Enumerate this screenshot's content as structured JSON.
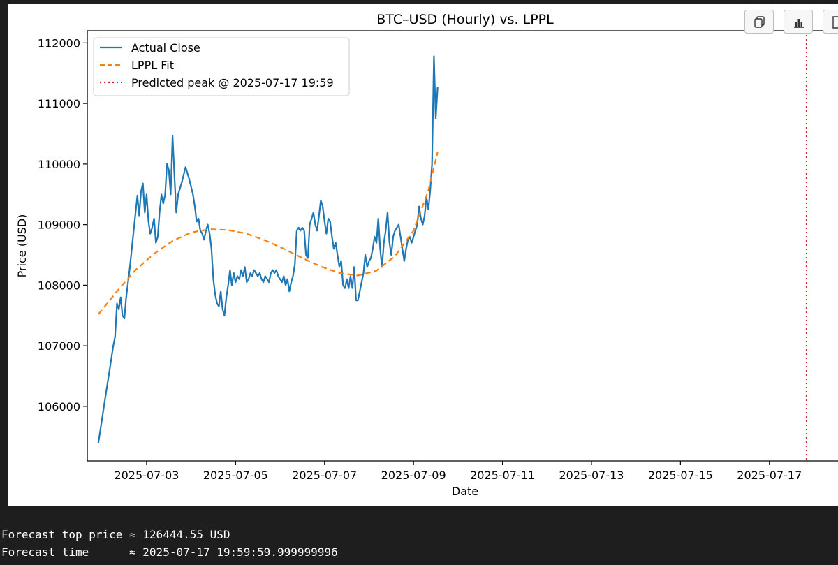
{
  "toolbar": {
    "buttons": [
      {
        "name": "copy-icon"
      },
      {
        "name": "bar-chart-icon"
      },
      {
        "name": "document-icon"
      }
    ]
  },
  "chart_data": {
    "type": "line",
    "title": "BTC–USD (Hourly) vs. LPPL",
    "xlabel": "Date",
    "ylabel": "Price (USD)",
    "xlim": [
      "2025-07-01 16:00",
      "2025-07-18 13:00"
    ],
    "ylim": [
      105100,
      112200
    ],
    "xticks": [
      "2025-07-03",
      "2025-07-05",
      "2025-07-07",
      "2025-07-09",
      "2025-07-11",
      "2025-07-13",
      "2025-07-15",
      "2025-07-17"
    ],
    "yticks": [
      106000,
      107000,
      108000,
      109000,
      110000,
      111000,
      112000
    ],
    "grid": false,
    "legend_position": "upper-left",
    "series": [
      {
        "name": "Actual Close",
        "style": "solid",
        "color": "#1f77b4",
        "points": [
          [
            "2025-07-01 22:00",
            105400
          ],
          [
            "2025-07-02 00:00",
            105800
          ],
          [
            "2025-07-02 02:00",
            106200
          ],
          [
            "2025-07-02 04:00",
            106600
          ],
          [
            "2025-07-02 06:00",
            107000
          ],
          [
            "2025-07-02 07:00",
            107150
          ],
          [
            "2025-07-02 08:00",
            107700
          ],
          [
            "2025-07-02 09:00",
            107600
          ],
          [
            "2025-07-02 10:00",
            107800
          ],
          [
            "2025-07-02 11:00",
            107500
          ],
          [
            "2025-07-02 12:00",
            107450
          ],
          [
            "2025-07-02 13:00",
            107800
          ],
          [
            "2025-07-02 15:00",
            108300
          ],
          [
            "2025-07-02 17:00",
            108900
          ],
          [
            "2025-07-02 19:00",
            109480
          ],
          [
            "2025-07-02 20:00",
            109150
          ],
          [
            "2025-07-02 21:00",
            109550
          ],
          [
            "2025-07-02 22:00",
            109680
          ],
          [
            "2025-07-02 23:00",
            109200
          ],
          [
            "2025-07-03 00:00",
            109500
          ],
          [
            "2025-07-03 01:00",
            109050
          ],
          [
            "2025-07-03 02:00",
            108850
          ],
          [
            "2025-07-03 03:00",
            108950
          ],
          [
            "2025-07-03 04:00",
            109100
          ],
          [
            "2025-07-03 05:00",
            108700
          ],
          [
            "2025-07-03 06:00",
            108800
          ],
          [
            "2025-07-03 07:00",
            109200
          ],
          [
            "2025-07-03 08:00",
            109500
          ],
          [
            "2025-07-03 09:00",
            109350
          ],
          [
            "2025-07-03 10:00",
            109500
          ],
          [
            "2025-07-03 11:00",
            110000
          ],
          [
            "2025-07-03 12:00",
            109900
          ],
          [
            "2025-07-03 13:00",
            109500
          ],
          [
            "2025-07-03 14:00",
            110470
          ],
          [
            "2025-07-03 15:00",
            109800
          ],
          [
            "2025-07-03 16:00",
            109200
          ],
          [
            "2025-07-03 17:00",
            109500
          ],
          [
            "2025-07-03 19:00",
            109700
          ],
          [
            "2025-07-03 21:00",
            109950
          ],
          [
            "2025-07-03 23:00",
            109750
          ],
          [
            "2025-07-04 01:00",
            109500
          ],
          [
            "2025-07-04 02:00",
            109300
          ],
          [
            "2025-07-04 03:00",
            109050
          ],
          [
            "2025-07-04 04:00",
            109100
          ],
          [
            "2025-07-04 05:00",
            108900
          ],
          [
            "2025-07-04 06:00",
            108850
          ],
          [
            "2025-07-04 07:00",
            108750
          ],
          [
            "2025-07-04 08:00",
            108900
          ],
          [
            "2025-07-04 09:00",
            109000
          ],
          [
            "2025-07-04 10:00",
            108850
          ],
          [
            "2025-07-04 11:00",
            108600
          ],
          [
            "2025-07-04 12:00",
            108100
          ],
          [
            "2025-07-04 13:00",
            107850
          ],
          [
            "2025-07-04 14:00",
            107700
          ],
          [
            "2025-07-04 15:00",
            107650
          ],
          [
            "2025-07-04 16:00",
            107900
          ],
          [
            "2025-07-04 17:00",
            107600
          ],
          [
            "2025-07-04 18:00",
            107500
          ],
          [
            "2025-07-04 19:00",
            107800
          ],
          [
            "2025-07-04 20:00",
            108000
          ],
          [
            "2025-07-04 21:00",
            108250
          ],
          [
            "2025-07-04 22:00",
            108000
          ],
          [
            "2025-07-04 23:00",
            108200
          ],
          [
            "2025-07-05 00:00",
            108050
          ],
          [
            "2025-07-05 01:00",
            108150
          ],
          [
            "2025-07-05 02:00",
            108100
          ],
          [
            "2025-07-05 03:00",
            108250
          ],
          [
            "2025-07-05 04:00",
            108150
          ],
          [
            "2025-07-05 05:00",
            108300
          ],
          [
            "2025-07-05 06:00",
            108050
          ],
          [
            "2025-07-05 07:00",
            108100
          ],
          [
            "2025-07-05 08:00",
            108200
          ],
          [
            "2025-07-05 09:00",
            108150
          ],
          [
            "2025-07-05 10:00",
            108250
          ],
          [
            "2025-07-05 11:00",
            108200
          ],
          [
            "2025-07-05 12:00",
            108150
          ],
          [
            "2025-07-05 13:00",
            108200
          ],
          [
            "2025-07-05 14:00",
            108100
          ],
          [
            "2025-07-05 15:00",
            108050
          ],
          [
            "2025-07-05 16:00",
            108150
          ],
          [
            "2025-07-05 17:00",
            108100
          ],
          [
            "2025-07-05 18:00",
            108050
          ],
          [
            "2025-07-05 19:00",
            108200
          ],
          [
            "2025-07-05 20:00",
            108250
          ],
          [
            "2025-07-05 21:00",
            108200
          ],
          [
            "2025-07-05 22:00",
            108250
          ],
          [
            "2025-07-05 23:00",
            108150
          ],
          [
            "2025-07-06 00:00",
            108100
          ],
          [
            "2025-07-06 01:00",
            108050
          ],
          [
            "2025-07-06 02:00",
            108150
          ],
          [
            "2025-07-06 03:00",
            108000
          ],
          [
            "2025-07-06 04:00",
            108100
          ],
          [
            "2025-07-06 05:00",
            107900
          ],
          [
            "2025-07-06 06:00",
            108050
          ],
          [
            "2025-07-06 07:00",
            108150
          ],
          [
            "2025-07-06 08:00",
            108350
          ],
          [
            "2025-07-06 09:00",
            108900
          ],
          [
            "2025-07-06 10:00",
            108950
          ],
          [
            "2025-07-06 11:00",
            108900
          ],
          [
            "2025-07-06 12:00",
            108950
          ],
          [
            "2025-07-06 13:00",
            108900
          ],
          [
            "2025-07-06 14:00",
            108500
          ],
          [
            "2025-07-06 15:00",
            108450
          ],
          [
            "2025-07-06 16:00",
            109000
          ],
          [
            "2025-07-06 17:00",
            109100
          ],
          [
            "2025-07-06 18:00",
            109200
          ],
          [
            "2025-07-06 19:00",
            109000
          ],
          [
            "2025-07-06 20:00",
            108900
          ],
          [
            "2025-07-06 21:00",
            109150
          ],
          [
            "2025-07-06 22:00",
            109400
          ],
          [
            "2025-07-06 23:00",
            109300
          ],
          [
            "2025-07-07 00:00",
            109050
          ],
          [
            "2025-07-07 01:00",
            108850
          ],
          [
            "2025-07-07 02:00",
            109100
          ],
          [
            "2025-07-07 03:00",
            109050
          ],
          [
            "2025-07-07 04:00",
            108800
          ],
          [
            "2025-07-07 05:00",
            108600
          ],
          [
            "2025-07-07 06:00",
            108700
          ],
          [
            "2025-07-07 07:00",
            108500
          ],
          [
            "2025-07-07 08:00",
            108300
          ],
          [
            "2025-07-07 09:00",
            108400
          ],
          [
            "2025-07-07 10:00",
            108000
          ],
          [
            "2025-07-07 11:00",
            107950
          ],
          [
            "2025-07-07 12:00",
            108100
          ],
          [
            "2025-07-07 13:00",
            107950
          ],
          [
            "2025-07-07 14:00",
            108150
          ],
          [
            "2025-07-07 15:00",
            107950
          ],
          [
            "2025-07-07 16:00",
            108300
          ],
          [
            "2025-07-07 17:00",
            107750
          ],
          [
            "2025-07-07 18:00",
            107750
          ],
          [
            "2025-07-07 19:00",
            107900
          ],
          [
            "2025-07-07 20:00",
            108050
          ],
          [
            "2025-07-07 21:00",
            108200
          ],
          [
            "2025-07-07 22:00",
            108500
          ],
          [
            "2025-07-07 23:00",
            108300
          ],
          [
            "2025-07-08 00:00",
            108400
          ],
          [
            "2025-07-08 01:00",
            108450
          ],
          [
            "2025-07-08 02:00",
            108600
          ],
          [
            "2025-07-08 03:00",
            108800
          ],
          [
            "2025-07-08 04:00",
            108700
          ],
          [
            "2025-07-08 05:00",
            109100
          ],
          [
            "2025-07-08 06:00",
            108600
          ],
          [
            "2025-07-08 07:00",
            108300
          ],
          [
            "2025-07-08 08:00",
            108700
          ],
          [
            "2025-07-08 09:00",
            108900
          ],
          [
            "2025-07-08 10:00",
            109200
          ],
          [
            "2025-07-08 11:00",
            108700
          ],
          [
            "2025-07-08 12:00",
            108500
          ],
          [
            "2025-07-08 13:00",
            108800
          ],
          [
            "2025-07-08 14:00",
            108900
          ],
          [
            "2025-07-08 15:00",
            108950
          ],
          [
            "2025-07-08 16:00",
            109000
          ],
          [
            "2025-07-08 17:00",
            108800
          ],
          [
            "2025-07-08 18:00",
            108600
          ],
          [
            "2025-07-08 19:00",
            108400
          ],
          [
            "2025-07-08 20:00",
            108600
          ],
          [
            "2025-07-08 21:00",
            108750
          ],
          [
            "2025-07-08 22:00",
            108800
          ],
          [
            "2025-07-08 23:00",
            108700
          ],
          [
            "2025-07-09 00:00",
            108800
          ],
          [
            "2025-07-09 01:00",
            108900
          ],
          [
            "2025-07-09 02:00",
            109000
          ],
          [
            "2025-07-09 03:00",
            109300
          ],
          [
            "2025-07-09 04:00",
            109100
          ],
          [
            "2025-07-09 05:00",
            109000
          ],
          [
            "2025-07-09 06:00",
            109150
          ],
          [
            "2025-07-09 07:00",
            109450
          ],
          [
            "2025-07-09 08:00",
            109250
          ],
          [
            "2025-07-09 09:00",
            109550
          ],
          [
            "2025-07-09 10:00",
            110000
          ],
          [
            "2025-07-09 11:00",
            111780
          ],
          [
            "2025-07-09 12:00",
            110750
          ],
          [
            "2025-07-09 13:00",
            111270
          ]
        ]
      },
      {
        "name": "LPPL Fit",
        "style": "dashed",
        "color": "#ff7f0e",
        "points": [
          [
            "2025-07-01 22:00",
            107520
          ],
          [
            "2025-07-02 08:00",
            107900
          ],
          [
            "2025-07-02 18:00",
            108250
          ],
          [
            "2025-07-03 04:00",
            108520
          ],
          [
            "2025-07-03 14:00",
            108730
          ],
          [
            "2025-07-04 00:00",
            108870
          ],
          [
            "2025-07-04 10:00",
            108925
          ],
          [
            "2025-07-04 20:00",
            108910
          ],
          [
            "2025-07-05 06:00",
            108850
          ],
          [
            "2025-07-05 16:00",
            108740
          ],
          [
            "2025-07-06 02:00",
            108600
          ],
          [
            "2025-07-06 12:00",
            108450
          ],
          [
            "2025-07-06 22:00",
            108310
          ],
          [
            "2025-07-07 08:00",
            108200
          ],
          [
            "2025-07-07 18:00",
            108160
          ],
          [
            "2025-07-08 04:00",
            108240
          ],
          [
            "2025-07-08 14:00",
            108480
          ],
          [
            "2025-07-09 00:00",
            108900
          ],
          [
            "2025-07-09 08:00",
            109560
          ],
          [
            "2025-07-09 13:00",
            110200
          ]
        ]
      }
    ],
    "vlines": [
      {
        "name": "Predicted peak @ 2025-07-17 19:59",
        "x": "2025-07-17 20:00",
        "style": "dotted",
        "color": "#d62728"
      }
    ],
    "legend": [
      {
        "label": "Actual Close",
        "style": "solid",
        "color": "#1f77b4"
      },
      {
        "label": "LPPL Fit",
        "style": "dashed",
        "color": "#ff7f0e"
      },
      {
        "label": "Predicted peak @ 2025-07-17 19:59",
        "style": "dotted",
        "color": "#d62728"
      }
    ]
  },
  "console": {
    "lines": [
      "Forecast top price ≈ 126444.55 USD",
      "Forecast time      ≈ 2025-07-17 19:59:59.999999996"
    ]
  }
}
